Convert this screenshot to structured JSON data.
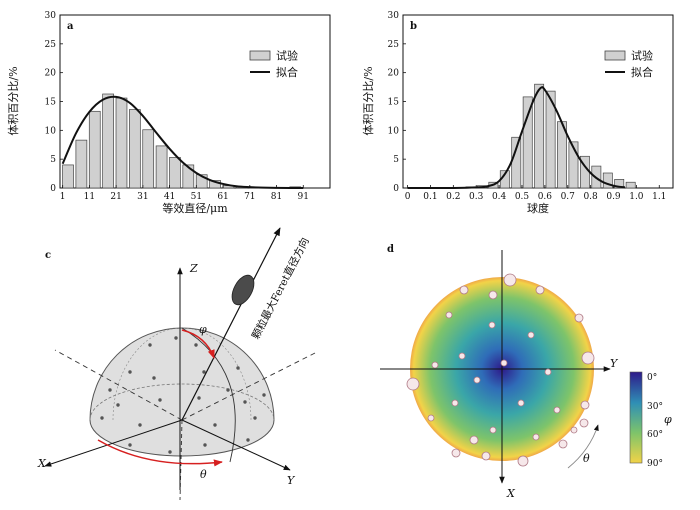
{
  "chart_data": [
    {
      "panel": "a",
      "type": "bar",
      "xlabel": "等效直径/μm",
      "ylabel": "体积百分比/%",
      "ylim": [
        0,
        30
      ],
      "yticks": [
        0,
        5,
        10,
        15,
        20,
        25,
        30
      ],
      "xlim": [
        0,
        101
      ],
      "xticks": [
        1,
        11,
        21,
        31,
        41,
        51,
        61,
        71,
        81,
        91
      ],
      "legend": {
        "placement": "top-right",
        "bar_label": "试验",
        "line_label": "拟合"
      },
      "bars": {
        "name": "试验",
        "x": [
          3,
          8,
          13,
          18,
          23,
          28,
          33,
          38,
          43,
          48,
          53,
          58,
          63,
          68,
          73,
          78,
          83,
          88
        ],
        "values": [
          4.0,
          8.3,
          13.3,
          16.3,
          15.6,
          13.6,
          10.1,
          7.3,
          5.3,
          4.0,
          2.3,
          1.3,
          0.4,
          0.2,
          0.1,
          0.1,
          0.0,
          0.2
        ]
      },
      "fit": {
        "name": "拟合",
        "x": [
          1,
          6,
          11,
          16,
          21,
          26,
          31,
          36,
          41,
          46,
          51,
          56,
          61,
          66,
          71,
          76,
          81,
          86,
          91
        ],
        "y": [
          4.2,
          9.5,
          13.2,
          15.3,
          15.8,
          14.8,
          12.5,
          9.6,
          6.8,
          4.4,
          2.6,
          1.4,
          0.7,
          0.3,
          0.15,
          0.07,
          0.03,
          0.01,
          0.0
        ]
      }
    },
    {
      "panel": "b",
      "type": "bar",
      "xlabel": "球度",
      "ylabel": "体积百分比/%",
      "ylim": [
        0,
        30
      ],
      "yticks": [
        0,
        5,
        10,
        15,
        20,
        25,
        30
      ],
      "xlim": [
        -0.02,
        1.16
      ],
      "xticks": [
        0,
        0.1,
        0.2,
        0.3,
        0.4,
        0.5,
        0.6,
        0.7,
        0.8,
        0.9,
        1.0,
        1.1
      ],
      "xtick_labels": [
        "0",
        "0.1",
        "0.2",
        "0.3",
        "0.4",
        "0.5",
        "0.6",
        "0.7",
        "0.8",
        "0.9",
        "1.0",
        "1.1"
      ],
      "legend": {
        "placement": "top-right",
        "bar_label": "试验",
        "line_label": "拟合"
      },
      "bars": {
        "name": "试验",
        "x": [
          0.025,
          0.075,
          0.125,
          0.175,
          0.225,
          0.275,
          0.325,
          0.375,
          0.425,
          0.475,
          0.525,
          0.575,
          0.625,
          0.675,
          0.725,
          0.775,
          0.825,
          0.875,
          0.925,
          0.975
        ],
        "values": [
          0.1,
          0.1,
          0.1,
          0.1,
          0.1,
          0.2,
          0.4,
          1.0,
          3.0,
          8.8,
          15.8,
          18.0,
          16.8,
          11.5,
          8.0,
          5.5,
          3.8,
          2.6,
          1.5,
          1.0
        ]
      },
      "fit": {
        "name": "拟合",
        "x": [
          0.0,
          0.1,
          0.2,
          0.3,
          0.35,
          0.4,
          0.45,
          0.5,
          0.55,
          0.58,
          0.6,
          0.65,
          0.7,
          0.75,
          0.8,
          0.85,
          0.9,
          0.95
        ],
        "y": [
          0.0,
          0.0,
          0.0,
          0.1,
          0.3,
          1.2,
          4.2,
          9.8,
          15.2,
          17.3,
          17.0,
          13.5,
          9.0,
          5.2,
          2.6,
          1.1,
          0.4,
          0.1
        ]
      }
    },
    {
      "panel": "c",
      "type": "diagram",
      "axis_labels": {
        "z": "Z",
        "x": "X",
        "y": "Y"
      },
      "angle_labels": {
        "phi": "φ",
        "theta": "θ"
      },
      "annotation": "颗粒最大Feret直径方向"
    },
    {
      "panel": "d",
      "type": "heatmap",
      "axis_labels": {
        "x": "X",
        "y": "Y"
      },
      "angle_label": "θ",
      "colorbar": {
        "label": "φ",
        "ticks": [
          "0°",
          "30°",
          "60°",
          "90°"
        ],
        "colors": [
          "#2e1a8a",
          "#2f6cb8",
          "#3aa6a8",
          "#7ec46a",
          "#f2d348"
        ]
      }
    }
  ]
}
